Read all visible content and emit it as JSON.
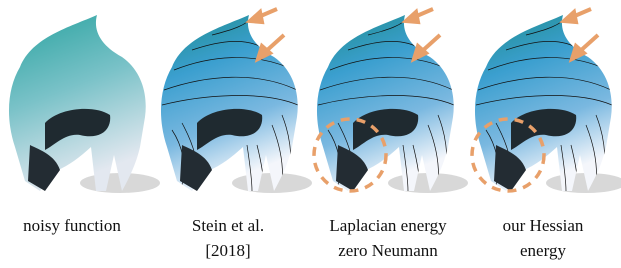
{
  "panels": [
    {
      "caption": [
        "noisy function"
      ]
    },
    {
      "caption": [
        "Stein et al.",
        "[2018]"
      ]
    },
    {
      "caption": [
        "Laplacian energy",
        "zero Neumann"
      ]
    },
    {
      "caption": [
        "our Hessian",
        "energy"
      ]
    }
  ]
}
